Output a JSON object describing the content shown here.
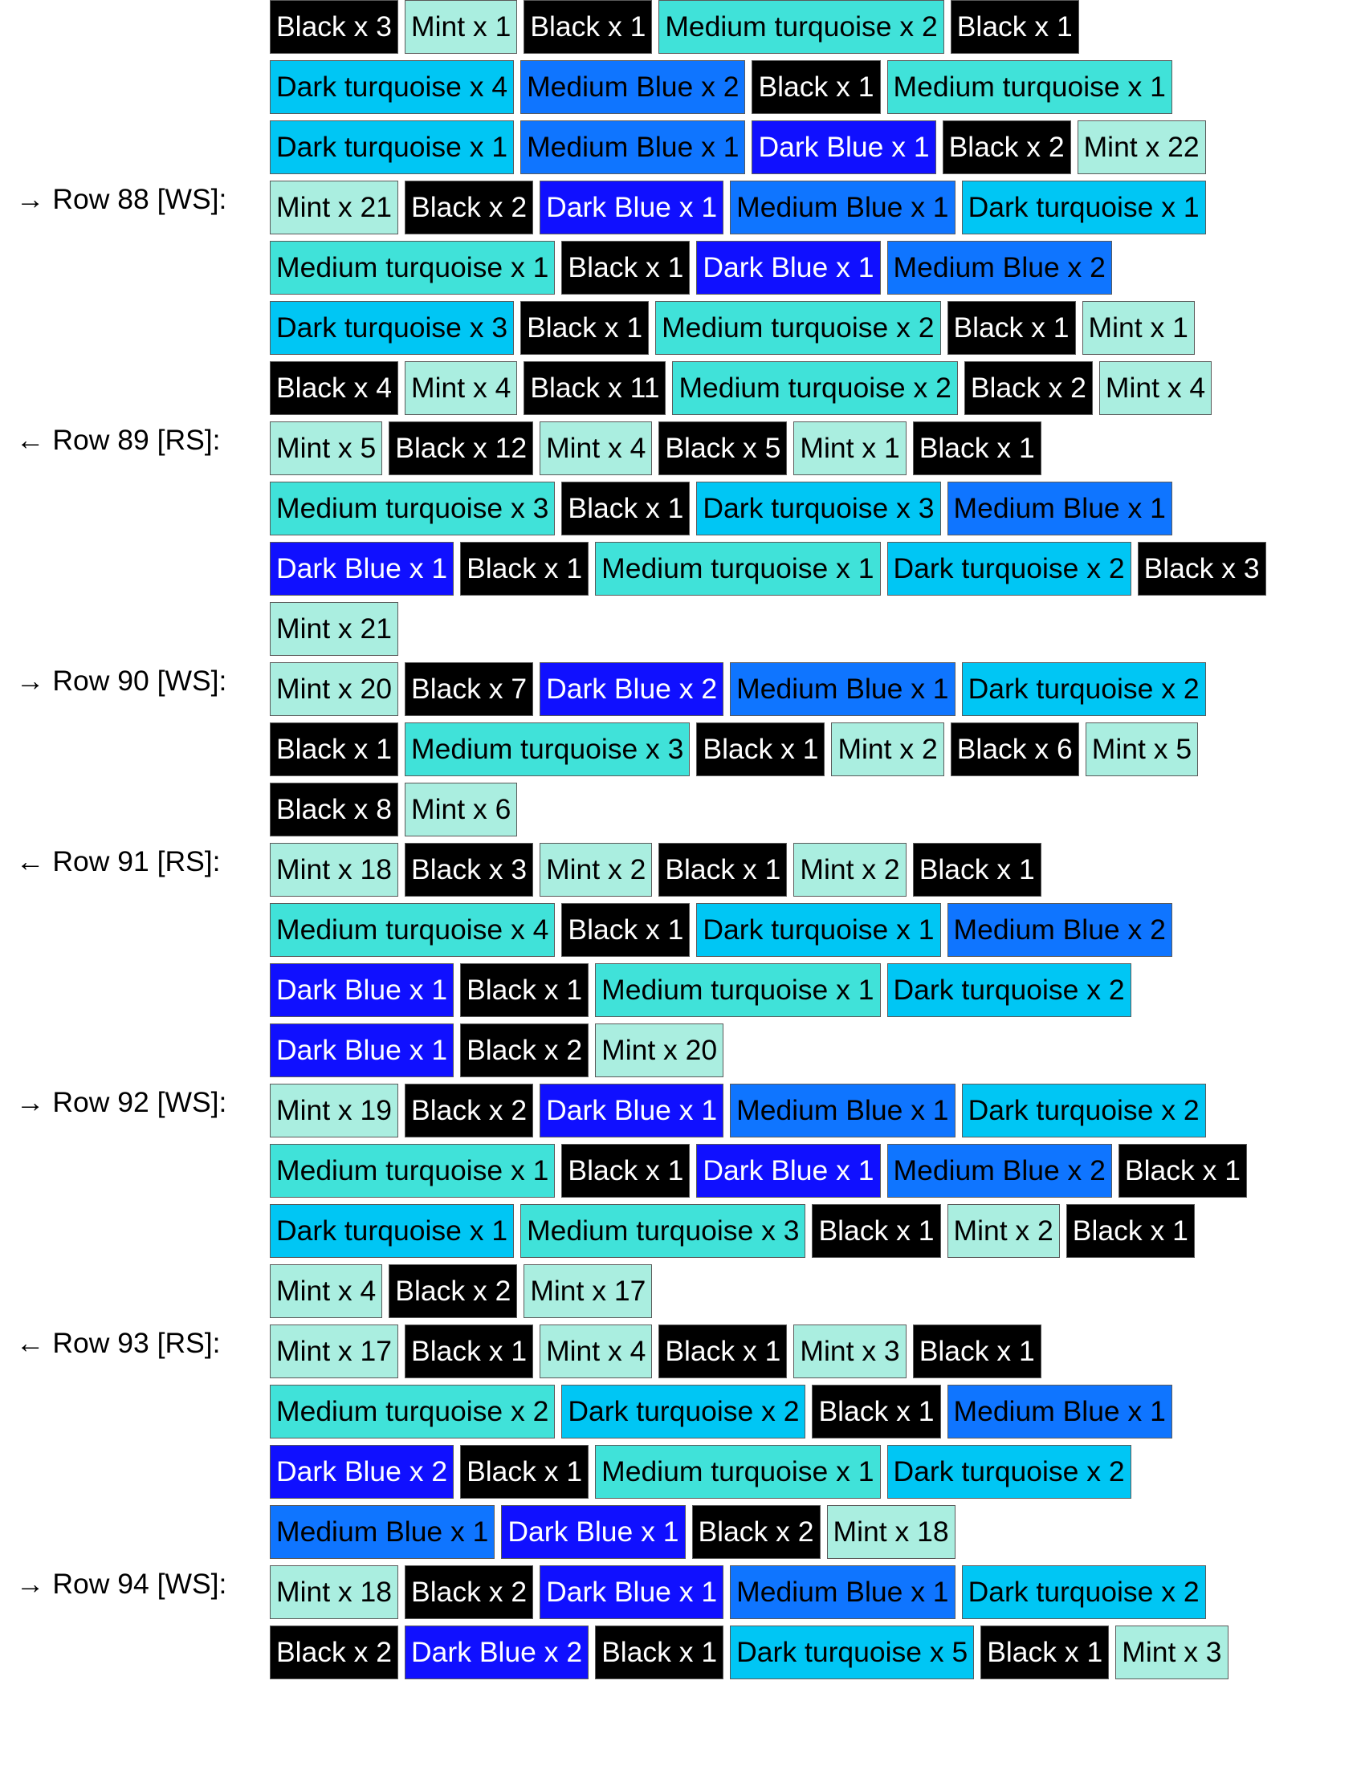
{
  "colors": {
    "Black": "#000000",
    "Mint": "#aaeee0",
    "Medium turquoise": "#40e2d9",
    "Dark turquoise": "#00c6f4",
    "Medium Blue": "#0f75ff",
    "Dark Blue": "#1010ff"
  },
  "blocks": [
    {
      "label": "",
      "lines": [
        [
          {
            "color": "Black",
            "text": "Black x 3"
          },
          {
            "color": "Mint",
            "text": "Mint x 1"
          },
          {
            "color": "Black",
            "text": "Black x 1"
          },
          {
            "color": "Medium turquoise",
            "text": "Medium turquoise x 2"
          },
          {
            "color": "Black",
            "text": "Black x 1"
          }
        ],
        [
          {
            "color": "Dark turquoise",
            "text": "Dark turquoise x 4"
          },
          {
            "color": "Medium Blue",
            "text": "Medium Blue x 2"
          },
          {
            "color": "Black",
            "text": "Black x 1"
          },
          {
            "color": "Medium turquoise",
            "text": "Medium turquoise x 1"
          }
        ],
        [
          {
            "color": "Dark turquoise",
            "text": "Dark turquoise x 1"
          },
          {
            "color": "Medium Blue",
            "text": "Medium Blue x 1"
          },
          {
            "color": "Dark Blue",
            "text": "Dark Blue x 1"
          },
          {
            "color": "Black",
            "text": "Black x 2"
          },
          {
            "color": "Mint",
            "text": "Mint x 22"
          }
        ]
      ]
    },
    {
      "label": "→ Row 88 [WS]:",
      "lines": [
        [
          {
            "color": "Mint",
            "text": "Mint x 21"
          },
          {
            "color": "Black",
            "text": "Black x 2"
          },
          {
            "color": "Dark Blue",
            "text": "Dark Blue x 1"
          },
          {
            "color": "Medium Blue",
            "text": "Medium Blue x 1"
          },
          {
            "color": "Dark turquoise",
            "text": "Dark turquoise x 1"
          }
        ],
        [
          {
            "color": "Medium turquoise",
            "text": "Medium turquoise x 1"
          },
          {
            "color": "Black",
            "text": "Black x 1"
          },
          {
            "color": "Dark Blue",
            "text": "Dark Blue x 1"
          },
          {
            "color": "Medium Blue",
            "text": "Medium Blue x 2"
          }
        ],
        [
          {
            "color": "Dark turquoise",
            "text": "Dark turquoise x 3"
          },
          {
            "color": "Black",
            "text": "Black x 1"
          },
          {
            "color": "Medium turquoise",
            "text": "Medium turquoise x 2"
          },
          {
            "color": "Black",
            "text": "Black x 1"
          },
          {
            "color": "Mint",
            "text": "Mint x 1"
          }
        ],
        [
          {
            "color": "Black",
            "text": "Black x 4"
          },
          {
            "color": "Mint",
            "text": "Mint x 4"
          },
          {
            "color": "Black",
            "text": "Black x 11"
          },
          {
            "color": "Medium turquoise",
            "text": "Medium turquoise x 2"
          },
          {
            "color": "Black",
            "text": "Black x 2"
          },
          {
            "color": "Mint",
            "text": "Mint x 4"
          }
        ]
      ]
    },
    {
      "label": "← Row 89 [RS]:",
      "lines": [
        [
          {
            "color": "Mint",
            "text": "Mint x 5"
          },
          {
            "color": "Black",
            "text": "Black x 12"
          },
          {
            "color": "Mint",
            "text": "Mint x 4"
          },
          {
            "color": "Black",
            "text": "Black x 5"
          },
          {
            "color": "Mint",
            "text": "Mint x 1"
          },
          {
            "color": "Black",
            "text": "Black x 1"
          }
        ],
        [
          {
            "color": "Medium turquoise",
            "text": "Medium turquoise x 3"
          },
          {
            "color": "Black",
            "text": "Black x 1"
          },
          {
            "color": "Dark turquoise",
            "text": "Dark turquoise x 3"
          },
          {
            "color": "Medium Blue",
            "text": "Medium Blue x 1"
          }
        ],
        [
          {
            "color": "Dark Blue",
            "text": "Dark Blue x 1"
          },
          {
            "color": "Black",
            "text": "Black x 1"
          },
          {
            "color": "Medium turquoise",
            "text": "Medium turquoise x 1"
          },
          {
            "color": "Dark turquoise",
            "text": "Dark turquoise x 2"
          },
          {
            "color": "Black",
            "text": "Black x 3"
          }
        ],
        [
          {
            "color": "Mint",
            "text": "Mint x 21"
          }
        ]
      ]
    },
    {
      "label": "→ Row 90 [WS]:",
      "lines": [
        [
          {
            "color": "Mint",
            "text": "Mint x 20"
          },
          {
            "color": "Black",
            "text": "Black x 7"
          },
          {
            "color": "Dark Blue",
            "text": "Dark Blue x 2"
          },
          {
            "color": "Medium Blue",
            "text": "Medium Blue x 1"
          },
          {
            "color": "Dark turquoise",
            "text": "Dark turquoise x 2"
          }
        ],
        [
          {
            "color": "Black",
            "text": "Black x 1"
          },
          {
            "color": "Medium turquoise",
            "text": "Medium turquoise x 3"
          },
          {
            "color": "Black",
            "text": "Black x 1"
          },
          {
            "color": "Mint",
            "text": "Mint x 2"
          },
          {
            "color": "Black",
            "text": "Black x 6"
          },
          {
            "color": "Mint",
            "text": "Mint x 5"
          }
        ],
        [
          {
            "color": "Black",
            "text": "Black x 8"
          },
          {
            "color": "Mint",
            "text": "Mint x 6"
          }
        ]
      ]
    },
    {
      "label": "← Row 91 [RS]:",
      "lines": [
        [
          {
            "color": "Mint",
            "text": "Mint x 18"
          },
          {
            "color": "Black",
            "text": "Black x 3"
          },
          {
            "color": "Mint",
            "text": "Mint x 2"
          },
          {
            "color": "Black",
            "text": "Black x 1"
          },
          {
            "color": "Mint",
            "text": "Mint x 2"
          },
          {
            "color": "Black",
            "text": "Black x 1"
          }
        ],
        [
          {
            "color": "Medium turquoise",
            "text": "Medium turquoise x 4"
          },
          {
            "color": "Black",
            "text": "Black x 1"
          },
          {
            "color": "Dark turquoise",
            "text": "Dark turquoise x 1"
          },
          {
            "color": "Medium Blue",
            "text": "Medium Blue x 2"
          }
        ],
        [
          {
            "color": "Dark Blue",
            "text": "Dark Blue x 1"
          },
          {
            "color": "Black",
            "text": "Black x 1"
          },
          {
            "color": "Medium turquoise",
            "text": "Medium turquoise x 1"
          },
          {
            "color": "Dark turquoise",
            "text": "Dark turquoise x 2"
          }
        ],
        [
          {
            "color": "Dark Blue",
            "text": "Dark Blue x 1"
          },
          {
            "color": "Black",
            "text": "Black x 2"
          },
          {
            "color": "Mint",
            "text": "Mint x 20"
          }
        ]
      ]
    },
    {
      "label": "→ Row 92 [WS]:",
      "lines": [
        [
          {
            "color": "Mint",
            "text": "Mint x 19"
          },
          {
            "color": "Black",
            "text": "Black x 2"
          },
          {
            "color": "Dark Blue",
            "text": "Dark Blue x 1"
          },
          {
            "color": "Medium Blue",
            "text": "Medium Blue x 1"
          },
          {
            "color": "Dark turquoise",
            "text": "Dark turquoise x 2"
          }
        ],
        [
          {
            "color": "Medium turquoise",
            "text": "Medium turquoise x 1"
          },
          {
            "color": "Black",
            "text": "Black x 1"
          },
          {
            "color": "Dark Blue",
            "text": "Dark Blue x 1"
          },
          {
            "color": "Medium Blue",
            "text": "Medium Blue x 2"
          },
          {
            "color": "Black",
            "text": "Black x 1"
          }
        ],
        [
          {
            "color": "Dark turquoise",
            "text": "Dark turquoise x 1"
          },
          {
            "color": "Medium turquoise",
            "text": "Medium turquoise x 3"
          },
          {
            "color": "Black",
            "text": "Black x 1"
          },
          {
            "color": "Mint",
            "text": "Mint x 2"
          },
          {
            "color": "Black",
            "text": "Black x 1"
          }
        ],
        [
          {
            "color": "Mint",
            "text": "Mint x 4"
          },
          {
            "color": "Black",
            "text": "Black x 2"
          },
          {
            "color": "Mint",
            "text": "Mint x 17"
          }
        ]
      ]
    },
    {
      "label": "← Row 93 [RS]:",
      "lines": [
        [
          {
            "color": "Mint",
            "text": "Mint x 17"
          },
          {
            "color": "Black",
            "text": "Black x 1"
          },
          {
            "color": "Mint",
            "text": "Mint x 4"
          },
          {
            "color": "Black",
            "text": "Black x 1"
          },
          {
            "color": "Mint",
            "text": "Mint x 3"
          },
          {
            "color": "Black",
            "text": "Black x 1"
          }
        ],
        [
          {
            "color": "Medium turquoise",
            "text": "Medium turquoise x 2"
          },
          {
            "color": "Dark turquoise",
            "text": "Dark turquoise x 2"
          },
          {
            "color": "Black",
            "text": "Black x 1"
          },
          {
            "color": "Medium Blue",
            "text": "Medium Blue x 1"
          }
        ],
        [
          {
            "color": "Dark Blue",
            "text": "Dark Blue x 2"
          },
          {
            "color": "Black",
            "text": "Black x 1"
          },
          {
            "color": "Medium turquoise",
            "text": "Medium turquoise x 1"
          },
          {
            "color": "Dark turquoise",
            "text": "Dark turquoise x 2"
          }
        ],
        [
          {
            "color": "Medium Blue",
            "text": "Medium Blue x 1"
          },
          {
            "color": "Dark Blue",
            "text": "Dark Blue x 1"
          },
          {
            "color": "Black",
            "text": "Black x 2"
          },
          {
            "color": "Mint",
            "text": "Mint x 18"
          }
        ]
      ]
    },
    {
      "label": "→ Row 94 [WS]:",
      "lines": [
        [
          {
            "color": "Mint",
            "text": "Mint x 18"
          },
          {
            "color": "Black",
            "text": "Black x 2"
          },
          {
            "color": "Dark Blue",
            "text": "Dark Blue x 1"
          },
          {
            "color": "Medium Blue",
            "text": "Medium Blue x 1"
          },
          {
            "color": "Dark turquoise",
            "text": "Dark turquoise x 2"
          }
        ],
        [
          {
            "color": "Black",
            "text": "Black x 2"
          },
          {
            "color": "Dark Blue",
            "text": "Dark Blue x 2"
          },
          {
            "color": "Black",
            "text": "Black x 1"
          },
          {
            "color": "Dark turquoise",
            "text": "Dark turquoise x 5"
          },
          {
            "color": "Black",
            "text": "Black x 1"
          },
          {
            "color": "Mint",
            "text": "Mint x 3"
          }
        ]
      ]
    }
  ]
}
